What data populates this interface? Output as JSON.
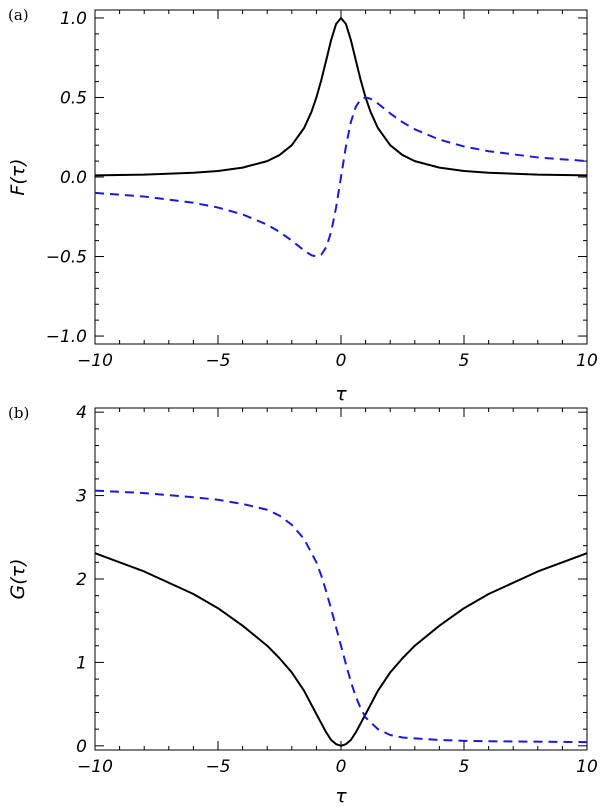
{
  "chart_data": [
    {
      "type": "line",
      "panel_label": "(a)",
      "xlabel": "τ",
      "ylabel": "F(τ)",
      "xlim": [
        -10,
        10
      ],
      "ylim": [
        -1.05,
        1.05
      ],
      "x_ticks": [
        -10,
        -5,
        0,
        5,
        10
      ],
      "x_tick_labels": [
        "−10",
        "−5",
        "0",
        "5",
        "10"
      ],
      "y_ticks": [
        -1.0,
        -0.5,
        0.0,
        0.5,
        1.0
      ],
      "y_tick_labels": [
        "−1.0",
        "−0.5",
        "0.0",
        "0.5",
        "1.0"
      ],
      "grid": false,
      "series": [
        {
          "color": "#000000",
          "style": "solid",
          "x": [
            -10,
            -8,
            -6,
            -5,
            -4,
            -3,
            -2.5,
            -2,
            -1.5,
            -1.2,
            -1,
            -0.8,
            -0.6,
            -0.4,
            -0.2,
            0,
            0.2,
            0.4,
            0.6,
            0.8,
            1,
            1.2,
            1.5,
            2,
            2.5,
            3,
            4,
            5,
            6,
            8,
            10
          ],
          "y": [
            0.01,
            0.015,
            0.027,
            0.038,
            0.059,
            0.1,
            0.138,
            0.2,
            0.308,
            0.41,
            0.5,
            0.61,
            0.735,
            0.862,
            0.962,
            1.0,
            0.962,
            0.862,
            0.735,
            0.61,
            0.5,
            0.41,
            0.308,
            0.2,
            0.138,
            0.1,
            0.059,
            0.038,
            0.027,
            0.015,
            0.01
          ]
        },
        {
          "color": "#1a1ad6",
          "style": "dashed",
          "x": [
            -10,
            -8,
            -6,
            -5,
            -4,
            -3,
            -2.5,
            -2,
            -1.5,
            -1.2,
            -1,
            -0.8,
            -0.6,
            -0.4,
            -0.2,
            0,
            0.2,
            0.4,
            0.6,
            0.8,
            1,
            1.2,
            1.5,
            2,
            2.5,
            3,
            4,
            5,
            6,
            8,
            10
          ],
          "y": [
            -0.1,
            -0.123,
            -0.162,
            -0.192,
            -0.235,
            -0.3,
            -0.345,
            -0.4,
            -0.462,
            -0.492,
            -0.5,
            -0.488,
            -0.441,
            -0.345,
            -0.192,
            0,
            0.192,
            0.345,
            0.441,
            0.488,
            0.5,
            0.492,
            0.462,
            0.4,
            0.345,
            0.3,
            0.235,
            0.192,
            0.162,
            0.123,
            0.1
          ]
        }
      ]
    },
    {
      "type": "line",
      "panel_label": "(b)",
      "xlabel": "τ",
      "ylabel": "G(τ)",
      "xlim": [
        -10,
        10
      ],
      "ylim": [
        -0.05,
        4.05
      ],
      "x_ticks": [
        -10,
        -5,
        0,
        5,
        10
      ],
      "x_tick_labels": [
        "−10",
        "−5",
        "0",
        "5",
        "10"
      ],
      "y_ticks": [
        0,
        1,
        2,
        3,
        4
      ],
      "y_tick_labels": [
        "0",
        "1",
        "2",
        "3",
        "4"
      ],
      "grid": false,
      "series": [
        {
          "color": "#000000",
          "style": "solid",
          "x": [
            -10,
            -8,
            -6,
            -5,
            -4,
            -3,
            -2.5,
            -2,
            -1.5,
            -1,
            -0.8,
            -0.6,
            -0.4,
            -0.2,
            0,
            0.2,
            0.4,
            0.6,
            0.8,
            1,
            1.5,
            2,
            2.5,
            3,
            4,
            5,
            6,
            8,
            10
          ],
          "y": [
            2.31,
            2.09,
            1.82,
            1.65,
            1.44,
            1.2,
            1.05,
            0.88,
            0.66,
            0.38,
            0.27,
            0.16,
            0.07,
            0.02,
            0.0,
            0.02,
            0.07,
            0.16,
            0.27,
            0.38,
            0.66,
            0.88,
            1.05,
            1.2,
            1.44,
            1.65,
            1.82,
            2.09,
            2.31
          ]
        },
        {
          "color": "#1a1ad6",
          "style": "dashed",
          "x": [
            -10,
            -8,
            -6,
            -5,
            -4,
            -3,
            -2.5,
            -2,
            -1.5,
            -1,
            -0.8,
            -0.6,
            -0.4,
            -0.2,
            0,
            0.2,
            0.4,
            0.6,
            0.8,
            1,
            1.5,
            2,
            2.5,
            3,
            4,
            5,
            6,
            8,
            10
          ],
          "y": [
            3.06,
            3.03,
            2.98,
            2.95,
            2.9,
            2.83,
            2.76,
            2.65,
            2.48,
            2.2,
            2.04,
            1.85,
            1.64,
            1.42,
            1.2,
            0.98,
            0.77,
            0.59,
            0.45,
            0.34,
            0.2,
            0.13,
            0.1,
            0.09,
            0.07,
            0.06,
            0.055,
            0.05,
            0.045
          ]
        }
      ]
    }
  ]
}
